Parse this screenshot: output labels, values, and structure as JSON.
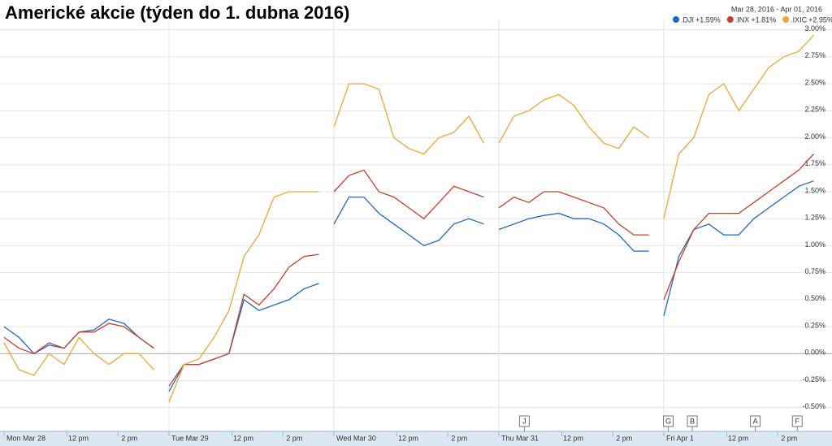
{
  "chart_data": {
    "type": "line",
    "title": "Americké akcie (týden do 1. dubna 2016)",
    "date_range": "Mar 28, 2016  -  Apr 01, 2016",
    "x": [
      0,
      1,
      2,
      3,
      4,
      5,
      6,
      7,
      8,
      9,
      10,
      10.5,
      11,
      12,
      13,
      14,
      15,
      16,
      17,
      18,
      19,
      20,
      21,
      21.5,
      22,
      23,
      24,
      25,
      26,
      27,
      28,
      29,
      30,
      31,
      32,
      32.5,
      33,
      34,
      35,
      36,
      37,
      38,
      39,
      40,
      41,
      42,
      43,
      43.5,
      44,
      45,
      46,
      47,
      48,
      49,
      50,
      51,
      52,
      53,
      54
    ],
    "xlim": [
      0,
      55
    ],
    "xticks": [
      {
        "value": 0,
        "label": "Mon Mar 28"
      },
      {
        "value": 4.2,
        "label": "12 pm"
      },
      {
        "value": 7.6,
        "label": "2 pm"
      },
      {
        "value": 11,
        "label": "Tue Mar 29"
      },
      {
        "value": 15.2,
        "label": "12 pm"
      },
      {
        "value": 18.6,
        "label": "2 pm"
      },
      {
        "value": 22,
        "label": "Wed Mar 30"
      },
      {
        "value": 26.2,
        "label": "12 pm"
      },
      {
        "value": 29.6,
        "label": "2 pm"
      },
      {
        "value": 33,
        "label": "Thu Mar 31"
      },
      {
        "value": 37.2,
        "label": "12 pm"
      },
      {
        "value": 40.6,
        "label": "2 pm"
      },
      {
        "value": 44,
        "label": "Fri Apr 1"
      },
      {
        "value": 48.2,
        "label": "12 pm"
      },
      {
        "value": 51.6,
        "label": "2 pm"
      }
    ],
    "ylim": [
      -0.72,
      3.05
    ],
    "yticks": [
      {
        "value": -0.5,
        "label": "-0.50%"
      },
      {
        "value": -0.25,
        "label": "-0.25%"
      },
      {
        "value": 0,
        "label": "0.00%"
      },
      {
        "value": 0.25,
        "label": "0.25%"
      },
      {
        "value": 0.5,
        "label": "0.50%"
      },
      {
        "value": 0.75,
        "label": "0.75%"
      },
      {
        "value": 1,
        "label": "1.00%"
      },
      {
        "value": 1.25,
        "label": "1.25%"
      },
      {
        "value": 1.5,
        "label": "1.50%"
      },
      {
        "value": 1.75,
        "label": "1.75%"
      },
      {
        "value": 2,
        "label": "2.00%"
      },
      {
        "value": 2.25,
        "label": "2.25%"
      },
      {
        "value": 2.5,
        "label": "2.50%"
      },
      {
        "value": 2.75,
        "label": "2.75%"
      },
      {
        "value": 3,
        "label": "3.00%"
      }
    ],
    "grid": true,
    "series": [
      {
        "name": ".DJI",
        "change": "+1.59%",
        "color": "#1f67c4",
        "values": [
          0.25,
          0.15,
          0.0,
          0.08,
          0.05,
          0.2,
          0.22,
          0.32,
          0.28,
          0.15,
          0.05,
          null,
          -0.35,
          -0.1,
          -0.1,
          -0.05,
          0.0,
          0.5,
          0.4,
          0.45,
          0.5,
          0.6,
          0.65,
          null,
          1.2,
          1.45,
          1.45,
          1.3,
          1.2,
          1.1,
          1.0,
          1.05,
          1.2,
          1.25,
          1.2,
          null,
          1.15,
          1.2,
          1.25,
          1.28,
          1.3,
          1.25,
          1.25,
          1.2,
          1.1,
          0.95,
          0.95,
          null,
          0.35,
          0.9,
          1.15,
          1.2,
          1.1,
          1.1,
          1.25,
          1.35,
          1.45,
          1.55,
          1.6
        ]
      },
      {
        "name": ".INX",
        "change": "+1.81%",
        "color": "#c7402c",
        "values": [
          0.15,
          0.05,
          0.0,
          0.1,
          0.05,
          0.2,
          0.2,
          0.28,
          0.25,
          0.15,
          0.05,
          null,
          -0.3,
          -0.1,
          -0.1,
          -0.05,
          0.0,
          0.55,
          0.45,
          0.6,
          0.8,
          0.9,
          0.92,
          null,
          1.5,
          1.65,
          1.7,
          1.5,
          1.45,
          1.35,
          1.25,
          1.4,
          1.55,
          1.5,
          1.45,
          null,
          1.35,
          1.45,
          1.4,
          1.5,
          1.5,
          1.45,
          1.4,
          1.35,
          1.2,
          1.1,
          1.1,
          null,
          0.5,
          0.85,
          1.15,
          1.3,
          1.3,
          1.3,
          1.4,
          1.5,
          1.6,
          1.7,
          1.85
        ]
      },
      {
        "name": ".IXIC",
        "change": "+2.95%",
        "color": "#f0a631",
        "values": [
          0.1,
          -0.15,
          -0.2,
          0.0,
          -0.1,
          0.15,
          0.0,
          -0.1,
          0.0,
          0.0,
          -0.15,
          null,
          -0.45,
          -0.1,
          -0.05,
          0.15,
          0.4,
          0.9,
          1.1,
          1.45,
          1.5,
          1.5,
          1.5,
          null,
          2.1,
          2.5,
          2.5,
          2.45,
          2.0,
          1.9,
          1.85,
          2.0,
          2.05,
          2.2,
          1.95,
          null,
          1.95,
          2.2,
          2.25,
          2.35,
          2.4,
          2.3,
          2.1,
          1.95,
          1.9,
          2.1,
          2.0,
          null,
          1.25,
          1.85,
          2.0,
          2.4,
          2.5,
          2.25,
          2.45,
          2.65,
          2.75,
          2.8,
          2.95
        ]
      }
    ],
    "events": [
      {
        "label": "J",
        "x": 34.7
      },
      {
        "label": "G",
        "x": 44.3
      },
      {
        "label": "B",
        "x": 45.9
      },
      {
        "label": "A",
        "x": 50.1
      },
      {
        "label": "F",
        "x": 52.9
      }
    ]
  }
}
